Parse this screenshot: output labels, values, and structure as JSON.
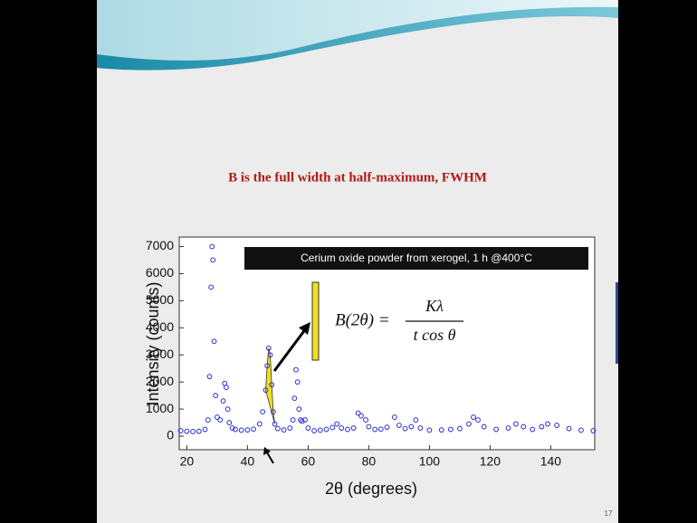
{
  "chart_data": {
    "type": "scatter",
    "title": "B is the full width at half-maximum, FWHM",
    "annotation": "Cerium oxide powder from xerogel, 1 h @400°C",
    "formula": {
      "lhs": "B(2θ) =",
      "numerator": "Kλ",
      "denominator": "t cos θ"
    },
    "x_label": "2θ  (degrees)",
    "y_label": "Intensity  (counts)",
    "color": "#2a2ad0",
    "highlight_color": "#f0e020",
    "x": [
      18,
      20,
      22,
      24,
      26,
      27,
      27.5,
      28,
      28.3,
      28.6,
      29,
      29.5,
      30,
      31,
      32,
      32.5,
      33,
      33.5,
      34,
      35,
      36,
      38,
      40,
      42,
      44,
      45,
      46,
      46.5,
      47,
      47.5,
      48,
      48.5,
      49,
      50,
      52,
      54,
      55,
      55.5,
      56,
      56.5,
      57,
      57.5,
      58,
      59,
      60,
      62,
      64,
      66,
      68,
      69.5,
      71,
      73,
      75,
      76.5,
      77.5,
      79,
      80,
      82,
      84,
      86,
      88.5,
      90,
      92,
      94,
      95.5,
      97,
      100,
      104,
      107,
      110,
      113,
      114.5,
      116,
      118,
      122,
      126,
      128.5,
      131,
      134,
      137,
      139,
      142,
      146,
      150,
      154
    ],
    "values": [
      200,
      180,
      170,
      180,
      250,
      600,
      2200,
      5500,
      7000,
      6500,
      3500,
      1500,
      700,
      600,
      1300,
      1950,
      1800,
      1000,
      500,
      300,
      250,
      220,
      230,
      260,
      450,
      900,
      1700,
      2600,
      3250,
      3000,
      1900,
      900,
      450,
      280,
      230,
      300,
      600,
      1400,
      2450,
      2000,
      1000,
      600,
      550,
      600,
      300,
      200,
      220,
      250,
      320,
      450,
      300,
      250,
      300,
      850,
      750,
      600,
      350,
      250,
      260,
      330,
      700,
      400,
      280,
      350,
      600,
      300,
      220,
      230,
      250,
      280,
      450,
      700,
      600,
      350,
      250,
      300,
      450,
      350,
      250,
      350,
      450,
      400,
      280,
      220,
      200
    ],
    "xlim": [
      17.5,
      154.5
    ],
    "ylim": [
      -500,
      7350
    ],
    "xticks": [
      20,
      40,
      60,
      80,
      100,
      120,
      140
    ],
    "yticks": [
      0,
      1000,
      2000,
      3000,
      4000,
      5000,
      6000,
      7000
    ]
  },
  "slide_number": "17"
}
